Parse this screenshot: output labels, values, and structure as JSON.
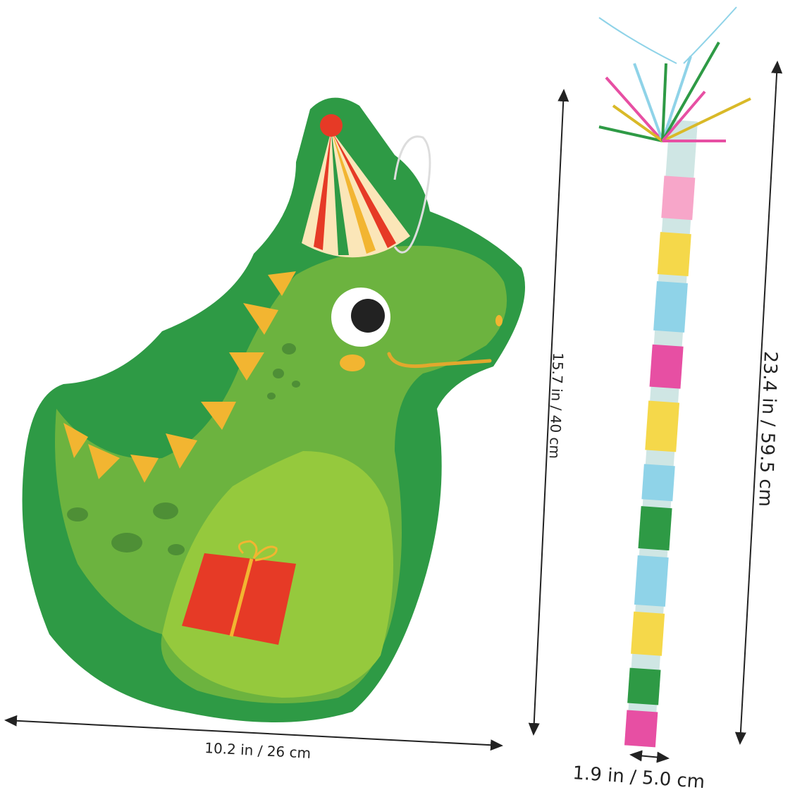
{
  "dimensions": {
    "pinata_width": "10.2 in / 26 cm",
    "pinata_height": "15.7 in / 40 cm",
    "stick_length": "23.4 in / 59.5 cm",
    "stick_diameter": "1.9 in / 5.0 cm"
  },
  "colors": {
    "fringe_green": "#2e9a45",
    "body_green": "#6cb33f",
    "belly_green": "#95c93d",
    "spikes_yellow": "#f2b531",
    "gift_red": "#e63a26"
  }
}
